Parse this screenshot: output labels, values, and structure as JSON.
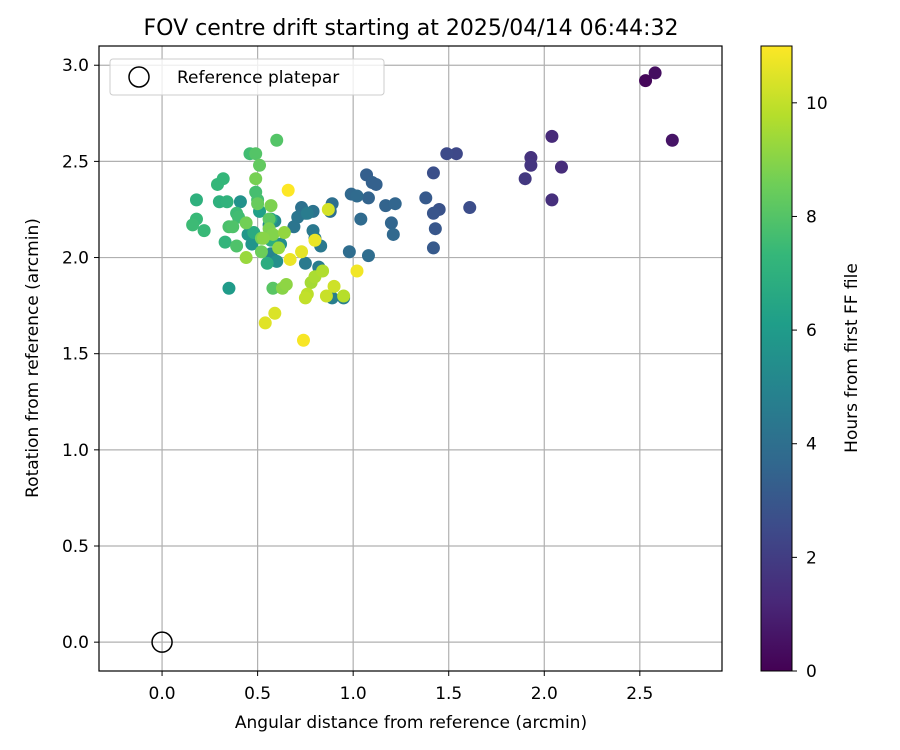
{
  "chart_data": {
    "type": "scatter",
    "title": "FOV centre drift starting at 2025/04/14 06:44:32",
    "xlabel": "Angular distance from reference (arcmin)",
    "ylabel": "Rotation from reference (arcmin)",
    "xlim": [
      -0.33,
      2.93
    ],
    "ylim": [
      -0.15,
      3.1
    ],
    "xticks": [
      0.0,
      0.5,
      1.0,
      1.5,
      2.0,
      2.5
    ],
    "xtick_labels": [
      "0.0",
      "0.5",
      "1.0",
      "1.5",
      "2.0",
      "2.5"
    ],
    "yticks": [
      0.0,
      0.5,
      1.0,
      1.5,
      2.0,
      2.5,
      3.0
    ],
    "ytick_labels": [
      "0.0",
      "0.5",
      "1.0",
      "1.5",
      "2.0",
      "2.5",
      "3.0"
    ],
    "grid": true,
    "legend": {
      "position": "top-left",
      "entries": [
        "Reference platepar"
      ]
    },
    "reference_point": {
      "x": 0.0,
      "y": 0.0,
      "label": "Reference platepar"
    },
    "colorbar": {
      "label": "Hours from first FF file",
      "min": 0,
      "max": 11,
      "ticks": [
        0,
        2,
        4,
        6,
        8,
        10
      ],
      "tick_labels": [
        "0",
        "2",
        "4",
        "6",
        "8",
        "10"
      ],
      "colormap": [
        "#440154",
        "#482878",
        "#3e4989",
        "#31688e",
        "#26828e",
        "#1f9e89",
        "#35b779",
        "#6ece58",
        "#b5de2b",
        "#fde725"
      ]
    },
    "points": [
      [
        2.53,
        2.92,
        0.2
      ],
      [
        2.58,
        2.96,
        0.4
      ],
      [
        2.67,
        2.61,
        0.6
      ],
      [
        2.04,
        2.63,
        1.3
      ],
      [
        2.09,
        2.47,
        1.4
      ],
      [
        2.04,
        2.3,
        1.5
      ],
      [
        1.93,
        2.52,
        1.6
      ],
      [
        1.93,
        2.48,
        1.7
      ],
      [
        1.9,
        2.41,
        1.8
      ],
      [
        1.54,
        2.54,
        2.4
      ],
      [
        1.49,
        2.54,
        2.5
      ],
      [
        1.61,
        2.26,
        2.6
      ],
      [
        1.42,
        2.44,
        2.7
      ],
      [
        1.45,
        2.25,
        2.8
      ],
      [
        1.42,
        2.23,
        2.9
      ],
      [
        1.43,
        2.15,
        3.0
      ],
      [
        1.42,
        2.05,
        3.1
      ],
      [
        1.38,
        2.31,
        3.1
      ],
      [
        1.07,
        2.43,
        3.3
      ],
      [
        1.1,
        2.39,
        3.4
      ],
      [
        1.12,
        2.38,
        3.4
      ],
      [
        1.08,
        2.31,
        3.5
      ],
      [
        1.17,
        2.27,
        3.5
      ],
      [
        1.22,
        2.28,
        3.6
      ],
      [
        1.2,
        2.18,
        3.6
      ],
      [
        1.21,
        2.12,
        3.7
      ],
      [
        0.99,
        2.33,
        3.7
      ],
      [
        1.02,
        2.32,
        3.8
      ],
      [
        1.04,
        2.2,
        3.8
      ],
      [
        1.08,
        2.01,
        3.9
      ],
      [
        0.98,
        2.03,
        3.9
      ],
      [
        0.89,
        2.28,
        4.0
      ],
      [
        0.88,
        2.24,
        4.0
      ],
      [
        0.73,
        2.26,
        4.1
      ],
      [
        0.75,
        2.23,
        4.1
      ],
      [
        0.79,
        2.24,
        4.2
      ],
      [
        0.71,
        2.21,
        4.3
      ],
      [
        0.69,
        2.16,
        4.3
      ],
      [
        0.83,
        2.06,
        4.4
      ],
      [
        0.79,
        2.14,
        4.4
      ],
      [
        0.8,
        2.1,
        4.5
      ],
      [
        0.75,
        1.97,
        4.5
      ],
      [
        0.76,
        2.23,
        4.6
      ],
      [
        0.82,
        1.95,
        4.6
      ],
      [
        0.89,
        1.79,
        4.7
      ],
      [
        0.95,
        1.79,
        4.7
      ],
      [
        0.57,
        2.02,
        5.0
      ],
      [
        0.56,
        2.17,
        5.2
      ],
      [
        0.59,
        2.19,
        5.3
      ],
      [
        0.62,
        2.07,
        5.4
      ],
      [
        0.6,
        1.98,
        5.5
      ],
      [
        0.41,
        2.29,
        5.6
      ],
      [
        0.47,
        2.07,
        5.7
      ],
      [
        0.45,
        2.12,
        5.8
      ],
      [
        0.35,
        1.84,
        6.0
      ],
      [
        0.51,
        2.24,
        6.2
      ],
      [
        0.57,
        2.2,
        6.5
      ],
      [
        0.48,
        2.13,
        6.7
      ],
      [
        0.55,
        1.97,
        6.8
      ],
      [
        0.57,
        2.09,
        6.9
      ],
      [
        0.18,
        2.3,
        7.0
      ],
      [
        0.3,
        2.29,
        7.0
      ],
      [
        0.34,
        2.29,
        7.1
      ],
      [
        0.33,
        2.08,
        7.2
      ],
      [
        0.29,
        2.38,
        7.3
      ],
      [
        0.32,
        2.41,
        7.3
      ],
      [
        0.22,
        2.14,
        7.4
      ],
      [
        0.18,
        2.2,
        7.4
      ],
      [
        0.16,
        2.17,
        7.5
      ],
      [
        0.39,
        2.23,
        7.5
      ],
      [
        0.4,
        2.21,
        7.6
      ],
      [
        0.46,
        2.54,
        7.6
      ],
      [
        0.49,
        2.34,
        7.7
      ],
      [
        0.5,
        2.3,
        7.7
      ],
      [
        0.35,
        2.16,
        7.8
      ],
      [
        0.37,
        2.16,
        7.9
      ],
      [
        0.39,
        2.06,
        7.9
      ],
      [
        0.6,
        2.61,
        8.0
      ],
      [
        0.49,
        2.54,
        8.0
      ],
      [
        0.58,
        1.84,
        8.1
      ],
      [
        0.56,
        2.2,
        8.2
      ],
      [
        0.51,
        2.48,
        8.3
      ],
      [
        0.5,
        2.28,
        8.4
      ],
      [
        0.52,
        2.03,
        8.5
      ],
      [
        0.52,
        2.1,
        8.6
      ],
      [
        0.44,
        2.18,
        8.6
      ],
      [
        0.49,
        2.41,
        8.7
      ],
      [
        0.57,
        2.27,
        8.8
      ],
      [
        0.56,
        2.15,
        8.8
      ],
      [
        0.58,
        2.12,
        8.9
      ],
      [
        0.53,
        2.1,
        9.0
      ],
      [
        0.63,
        1.84,
        9.0
      ],
      [
        0.65,
        1.86,
        9.1
      ],
      [
        0.61,
        2.05,
        9.2
      ],
      [
        0.64,
        2.13,
        9.2
      ],
      [
        0.44,
        2.0,
        9.3
      ],
      [
        0.78,
        1.87,
        9.5
      ],
      [
        0.8,
        1.9,
        9.6
      ],
      [
        0.84,
        1.93,
        9.7
      ],
      [
        0.95,
        1.8,
        9.8
      ],
      [
        0.76,
        1.81,
        9.9
      ],
      [
        0.75,
        1.79,
        10.0
      ],
      [
        0.86,
        1.8,
        10.1
      ],
      [
        0.9,
        1.85,
        10.2
      ],
      [
        0.87,
        2.25,
        10.3
      ],
      [
        0.59,
        1.71,
        10.4
      ],
      [
        0.54,
        1.66,
        10.5
      ],
      [
        0.73,
        2.03,
        10.6
      ],
      [
        0.67,
        1.99,
        10.7
      ],
      [
        0.8,
        2.09,
        10.7
      ],
      [
        1.02,
        1.93,
        10.8
      ],
      [
        0.74,
        1.57,
        10.9
      ],
      [
        0.66,
        2.35,
        11.0
      ]
    ]
  }
}
